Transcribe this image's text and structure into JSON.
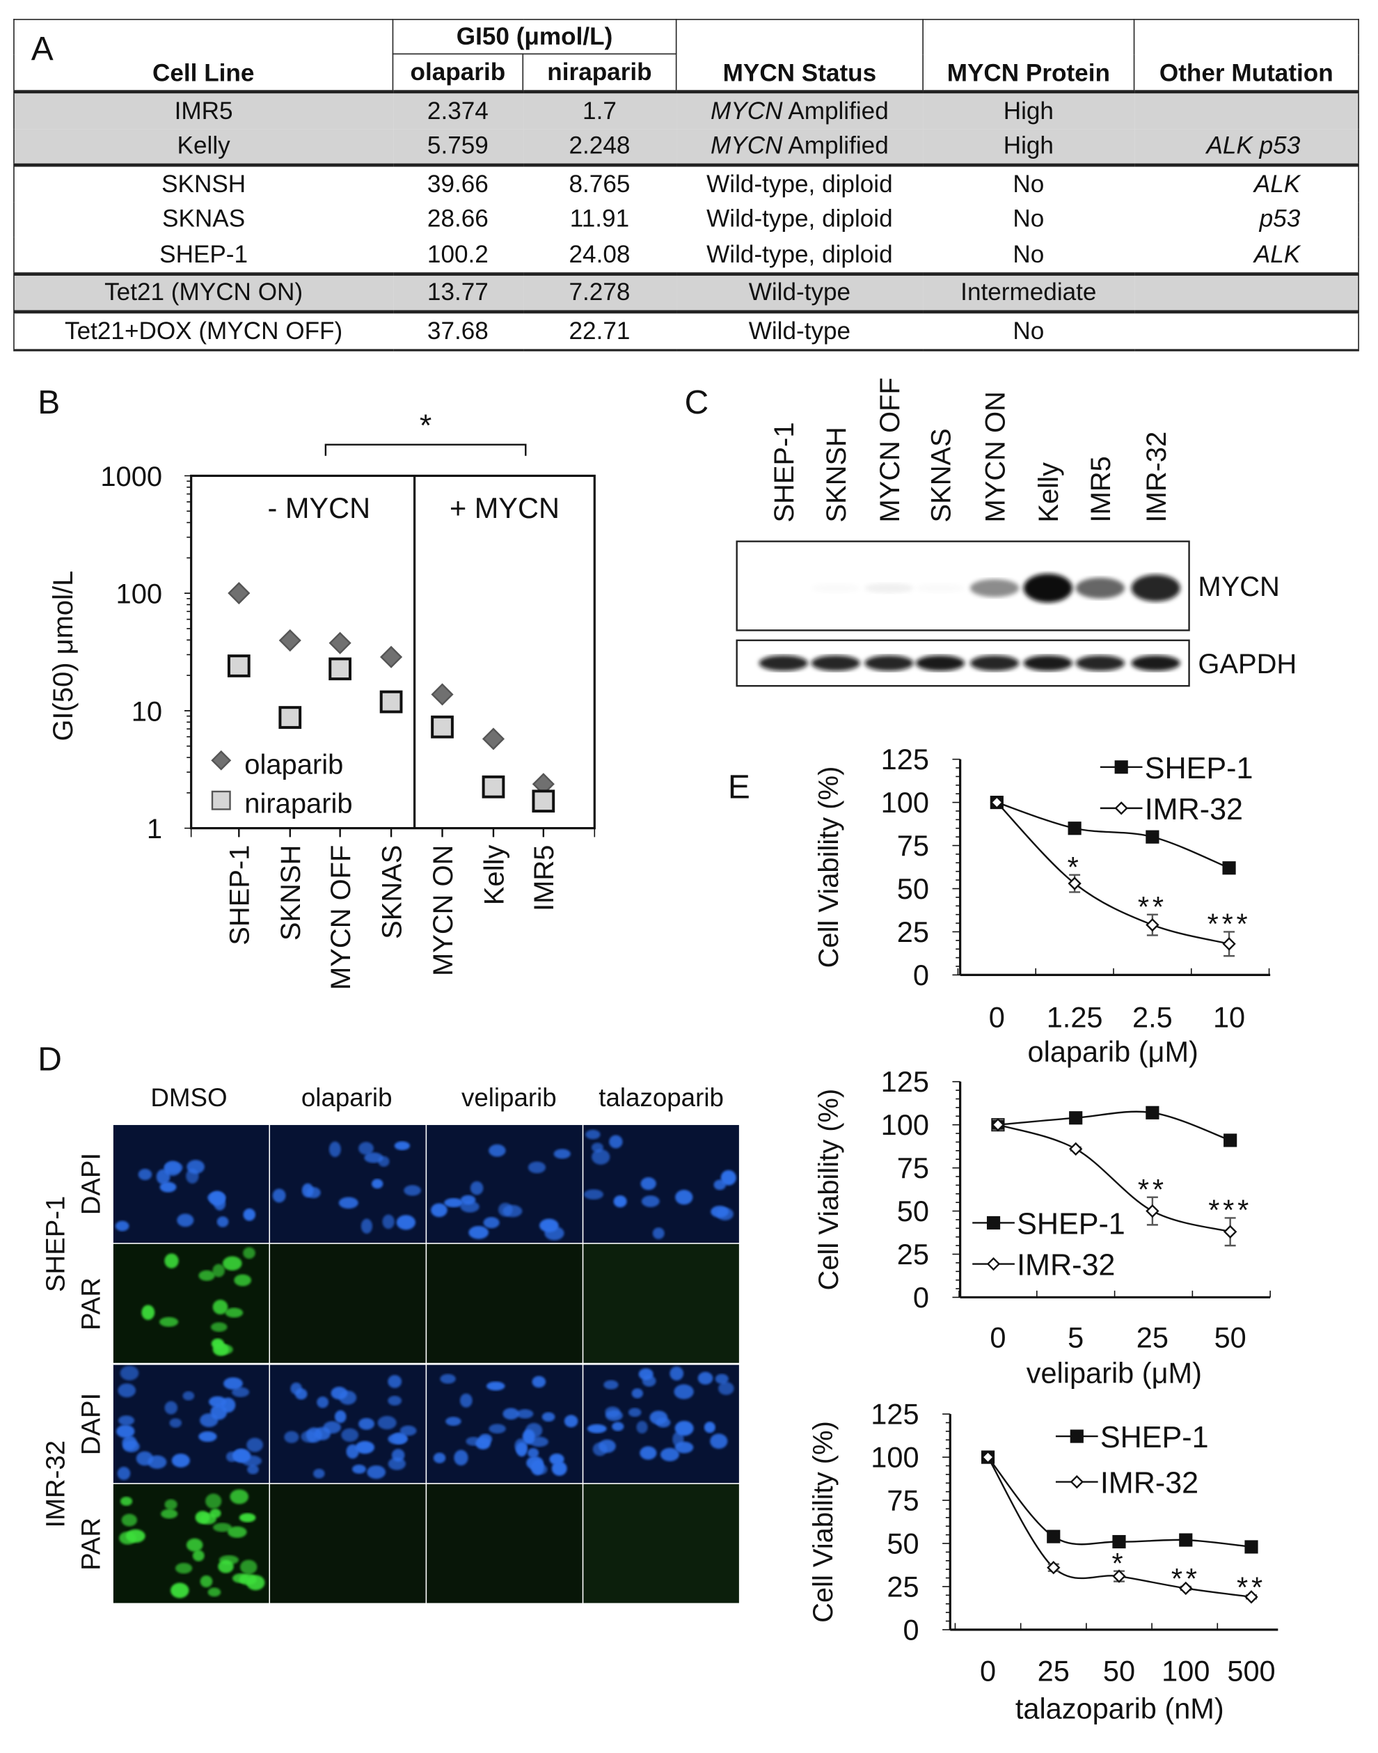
{
  "table": {
    "panel_label": "A",
    "headers": {
      "cell_line": "Cell Line",
      "gi50": "GI50 (μmol/L)",
      "olaparib": "olaparib",
      "niraparib": "niraparib",
      "status": "MYCN Status",
      "protein": "MYCN Protein",
      "other": "Other Mutation"
    },
    "rows": [
      {
        "cell_line": "IMR5",
        "olaparib": "2.374",
        "niraparib": "1.7",
        "status_gene": "MYCN",
        "status": " Amplified",
        "protein": "High",
        "other": ""
      },
      {
        "cell_line": "Kelly",
        "olaparib": "5.759",
        "niraparib": "2.248",
        "status_gene": "MYCN",
        "status": " Amplified",
        "protein": "High",
        "other": "ALK p53"
      },
      {
        "cell_line": "SKNSH",
        "olaparib": "39.66",
        "niraparib": "8.765",
        "status_gene": "",
        "status": "Wild-type, diploid",
        "protein": "No",
        "other": "ALK"
      },
      {
        "cell_line": "SKNAS",
        "olaparib": "28.66",
        "niraparib": "11.91",
        "status_gene": "",
        "status": "Wild-type, diploid",
        "protein": "No",
        "other": "p53"
      },
      {
        "cell_line": "SHEP-1",
        "olaparib": "100.2",
        "niraparib": "24.08",
        "status_gene": "",
        "status": "Wild-type, diploid",
        "protein": "No",
        "other": "ALK"
      },
      {
        "cell_line": "Tet21 (MYCN ON)",
        "olaparib": "13.77",
        "niraparib": "7.278",
        "status_gene": "",
        "status": "Wild-type",
        "protein": "Intermediate",
        "other": ""
      },
      {
        "cell_line": "Tet21+DOX (MYCN OFF)",
        "olaparib": "37.68",
        "niraparib": "22.71",
        "status_gene": "",
        "status": "Wild-type",
        "protein": "No",
        "other": ""
      }
    ]
  },
  "blot": {
    "panel_label": "C",
    "lanes": [
      "SHEP-1",
      "SKNSH",
      "MYCN OFF",
      "SKNAS",
      "MYCN ON",
      "Kelly",
      "IMR5",
      "IMR-32"
    ],
    "bands": [
      {
        "label": "MYCN",
        "intensity": [
          0,
          0.02,
          0.06,
          0.02,
          0.45,
          1.0,
          0.6,
          0.9
        ]
      },
      {
        "label": "GAPDH",
        "intensity": [
          0.9,
          0.9,
          0.9,
          0.95,
          0.9,
          0.95,
          0.9,
          0.95
        ]
      }
    ]
  },
  "microscopy": {
    "panel_label": "D",
    "columns": [
      "DMSO",
      "olaparib",
      "veliparib",
      "talazoparib"
    ],
    "cell_lines": [
      "SHEP-1",
      "IMR-32"
    ],
    "stains": [
      "DAPI",
      "PAR"
    ],
    "colors": {
      "dapi": "#2f6fe8",
      "par": "#3ee03a"
    }
  },
  "chart_data": [
    {
      "panel_label": "B",
      "type": "scatter",
      "ylabel": "GI(50) μmol/L",
      "yscale": "log",
      "ylim": [
        1,
        1000
      ],
      "yticks": [
        "1000",
        "100",
        "10",
        "1"
      ],
      "categories": [
        "SHEP-1",
        "SKNSH",
        "MYCN OFF",
        "SKNAS",
        "MYCN ON",
        "Kelly",
        "IMR5"
      ],
      "groups": [
        {
          "label": "- MYCN"
        },
        {
          "label": "+ MYCN"
        }
      ],
      "significance": "*",
      "legend_position": "bottom-left",
      "series": [
        {
          "name": "olaparib",
          "marker": "diamond",
          "color": "#707070",
          "values": [
            100.2,
            39.66,
            37.68,
            28.66,
            13.77,
            5.759,
            2.374
          ]
        },
        {
          "name": "niraparib",
          "marker": "square",
          "color": "#d6d6d6",
          "values": [
            24.08,
            8.765,
            22.71,
            11.91,
            7.278,
            2.248,
            1.7
          ]
        }
      ]
    },
    {
      "panel_label": "E",
      "type": "line",
      "xlabel": "olaparib (μM)",
      "ylabel": "Cell Viability (%)",
      "categories": [
        "0",
        "1.25",
        "2.5",
        "10"
      ],
      "ylim": [
        0,
        125
      ],
      "yticks": [
        "0",
        "25",
        "50",
        "75",
        "100",
        "125"
      ],
      "legend_position": "top-right",
      "series": [
        {
          "name": "SHEP-1",
          "marker": "filled-square",
          "values": [
            100,
            85,
            80,
            62
          ],
          "errors": [
            0,
            1,
            1,
            1
          ]
        },
        {
          "name": "IMR-32",
          "marker": "open-diamond",
          "values": [
            100,
            53,
            29,
            18
          ],
          "errors": [
            0,
            5,
            6,
            7
          ]
        }
      ],
      "annotations": [
        "",
        "*",
        "**",
        "***"
      ]
    },
    {
      "type": "line",
      "xlabel": "veliparib (μM)",
      "ylabel": "Cell Viability (%)",
      "categories": [
        "0",
        "5",
        "25",
        "50"
      ],
      "ylim": [
        0,
        125
      ],
      "yticks": [
        "0",
        "25",
        "50",
        "75",
        "100",
        "125"
      ],
      "legend_position": "bottom-left",
      "series": [
        {
          "name": "SHEP-1",
          "marker": "filled-square",
          "values": [
            100,
            104,
            107,
            91
          ],
          "errors": [
            0,
            1,
            1,
            1
          ]
        },
        {
          "name": "IMR-32",
          "marker": "open-diamond",
          "values": [
            100,
            86,
            50,
            38
          ],
          "errors": [
            3,
            1,
            8,
            8
          ]
        }
      ],
      "annotations": [
        "",
        "",
        "**",
        "***"
      ]
    },
    {
      "type": "line",
      "xlabel": "talazoparib (nM)",
      "ylabel": "Cell Viability (%)",
      "categories": [
        "0",
        "25",
        "50",
        "100",
        "500"
      ],
      "ylim": [
        0,
        125
      ],
      "yticks": [
        "0",
        "25",
        "50",
        "75",
        "100",
        "125"
      ],
      "legend_position": "top-right",
      "series": [
        {
          "name": "SHEP-1",
          "marker": "filled-square",
          "values": [
            100,
            54,
            51,
            52,
            48
          ],
          "errors": [
            0,
            1,
            1,
            1,
            1
          ]
        },
        {
          "name": "IMR-32",
          "marker": "open-diamond",
          "values": [
            100,
            36,
            31,
            24,
            19
          ],
          "errors": [
            0,
            2,
            3,
            1,
            1
          ]
        }
      ],
      "annotations": [
        "",
        "",
        "*",
        "**",
        "**"
      ]
    }
  ]
}
